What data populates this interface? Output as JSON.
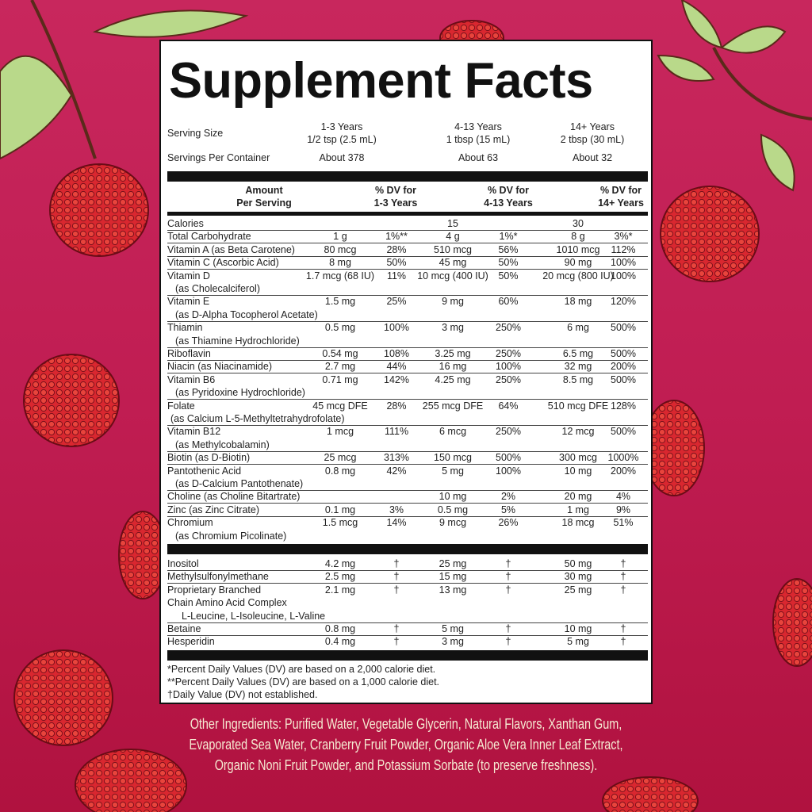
{
  "title": "Supplement Facts",
  "serving": {
    "serving_size_label": "Serving Size",
    "servings_per_container_label": "Servings Per Container",
    "groups": [
      {
        "age": "1-3 Years",
        "size": "1/2 tsp (2.5 mL)",
        "servings": "About 378"
      },
      {
        "age": "4-13 Years",
        "size": "1 tbsp (15 mL)",
        "servings": "About 63"
      },
      {
        "age": "14+ Years",
        "size": "2 tbsp (30 mL)",
        "servings": "About 32"
      }
    ]
  },
  "header": {
    "amount": [
      "Amount",
      "Per Serving"
    ],
    "dv1": [
      "% DV for",
      "1-3 Years"
    ],
    "dv2": [
      "% DV for",
      "4-13 Years"
    ],
    "dv3": [
      "% DV for",
      "14+ Years"
    ]
  },
  "rows": [
    {
      "name": [
        "Calories"
      ],
      "v": [
        "",
        "",
        "15",
        "",
        "30",
        ""
      ]
    },
    {
      "name": [
        "Total Carbohydrate"
      ],
      "v": [
        "1 g",
        "1%**",
        "4 g",
        "1%*",
        "8 g",
        "3%*"
      ]
    },
    {
      "name": [
        "Vitamin A (as Beta Carotene)"
      ],
      "v": [
        "80 mcg",
        "28%",
        "510 mcg",
        "56%",
        "1010 mcg",
        "112%"
      ]
    },
    {
      "name": [
        "Vitamin C (Ascorbic Acid)"
      ],
      "v": [
        "8 mg",
        "50%",
        "45 mg",
        "50%",
        "90 mg",
        "100%"
      ]
    },
    {
      "name": [
        "Vitamin D",
        "(as Cholecalciferol)"
      ],
      "v": [
        "1.7 mcg (68 IU)",
        "11%",
        "10 mcg (400 IU)",
        "50%",
        "20 mcg (800 IU)",
        "100%"
      ]
    },
    {
      "name": [
        "Vitamin E",
        "(as D-Alpha Tocopherol Acetate)"
      ],
      "v": [
        "1.5 mg",
        "25%",
        "9 mg",
        "60%",
        "18 mg",
        "120%"
      ]
    },
    {
      "name": [
        "Thiamin",
        "(as Thiamine Hydrochloride)"
      ],
      "v": [
        "0.5 mg",
        "100%",
        "3 mg",
        "250%",
        "6 mg",
        "500%"
      ]
    },
    {
      "name": [
        "Riboflavin"
      ],
      "v": [
        "0.54 mg",
        "108%",
        "3.25 mg",
        "250%",
        "6.5 mg",
        "500%"
      ]
    },
    {
      "name": [
        "Niacin (as Niacinamide)"
      ],
      "v": [
        "2.7 mg",
        "44%",
        "16 mg",
        "100%",
        "32 mg",
        "200%"
      ]
    },
    {
      "name": [
        "Vitamin B6",
        "(as Pyridoxine Hydrochloride)"
      ],
      "v": [
        "0.71 mg",
        "142%",
        "4.25 mg",
        "250%",
        "8.5 mg",
        "500%"
      ]
    },
    {
      "name": [
        "Folate",
        "(as Calcium L-5-Methyltetrahydrofolate)"
      ],
      "v": [
        "45 mcg DFE",
        "28%",
        "255 mcg DFE",
        "64%",
        "510 mcg DFE",
        "128%"
      ]
    },
    {
      "name": [
        "Vitamin B12",
        "(as Methylcobalamin)"
      ],
      "v": [
        "1 mcg",
        "111%",
        "6 mcg",
        "250%",
        "12 mcg",
        "500%"
      ]
    },
    {
      "name": [
        "Biotin (as D-Biotin)"
      ],
      "v": [
        "25 mcg",
        "313%",
        "150 mcg",
        "500%",
        "300 mcg",
        "1000%"
      ]
    },
    {
      "name": [
        "Pantothenic Acid",
        "(as D-Calcium Pantothenate)"
      ],
      "v": [
        "0.8 mg",
        "42%",
        "5 mg",
        "100%",
        "10 mg",
        "200%"
      ]
    },
    {
      "name": [
        "Choline (as Choline Bitartrate)"
      ],
      "v": [
        "",
        "",
        "10 mg",
        "2%",
        "20 mg",
        "4%"
      ]
    },
    {
      "name": [
        "Zinc (as Zinc Citrate)"
      ],
      "v": [
        "0.1 mg",
        "3%",
        "0.5 mg",
        "5%",
        "1 mg",
        "9%"
      ]
    },
    {
      "name": [
        "Chromium",
        "(as Chromium Picolinate)"
      ],
      "v": [
        "1.5 mcg",
        "14%",
        "9 mcg",
        "26%",
        "18 mcg",
        "51%"
      ]
    }
  ],
  "other_rows": [
    {
      "name": [
        "Inositol"
      ],
      "v": [
        "4.2 mg",
        "†",
        "25 mg",
        "†",
        "50 mg",
        "†"
      ]
    },
    {
      "name": [
        "Methylsulfonylmethane"
      ],
      "v": [
        "2.5 mg",
        "†",
        "15 mg",
        "†",
        "30 mg",
        "†"
      ]
    },
    {
      "name": [
        "Proprietary Branched",
        "Chain Amino Acid Complex",
        "L-Leucine, L-Isoleucine, L-Valine"
      ],
      "v": [
        "2.1 mg",
        "†",
        "13 mg",
        "†",
        "25 mg",
        "†"
      ]
    },
    {
      "name": [
        "Betaine"
      ],
      "v": [
        "0.8 mg",
        "†",
        "5 mg",
        "†",
        "10 mg",
        "†"
      ]
    },
    {
      "name": [
        "Hesperidin"
      ],
      "v": [
        "0.4 mg",
        "†",
        "3 mg",
        "†",
        "5 mg",
        "†"
      ]
    }
  ],
  "footnotes": [
    "*Percent Daily Values (DV) are based on a 2,000 calorie diet.",
    "**Percent Daily Values (DV) are based on a 1,000 calorie diet.",
    "†Daily Value (DV) not established."
  ],
  "other_ingredients": [
    "Other Ingredients: Purified Water, Vegetable Glycerin, Natural Flavors, Xanthan Gum,",
    "Evaporated Sea Water, Cranberry Fruit Powder, Organic Aloe Vera Inner Leaf Extract,",
    "Organic Noni Fruit Powder, and Potassium Sorbate (to preserve freshness)."
  ],
  "colors": {
    "background": "#c01d52",
    "ingredients_text": "#f6ead2",
    "raspberry": "#d8262e",
    "leaf": "#b9d98a"
  }
}
